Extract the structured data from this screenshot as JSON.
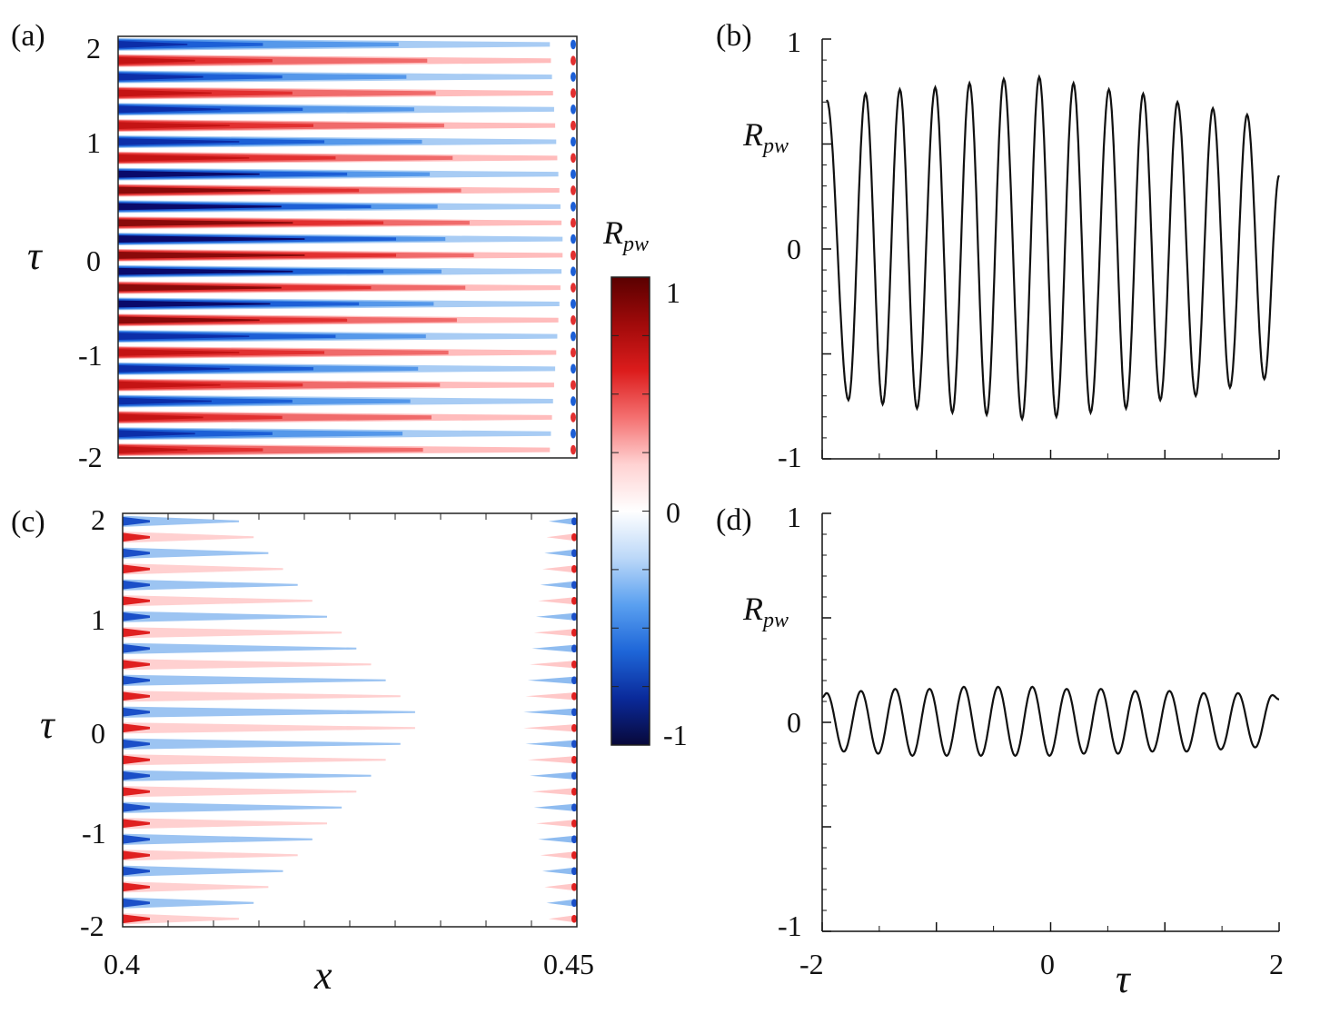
{
  "panels": {
    "a": {
      "label": "(a)"
    },
    "b": {
      "label": "(b)"
    },
    "c": {
      "label": "(c)"
    },
    "d": {
      "label": "(d)"
    }
  },
  "symbols": {
    "tau": "τ",
    "x": "x",
    "R": "R",
    "pw": "pw"
  },
  "colorbar": {
    "title_main": "R",
    "title_sub": "pw",
    "tick_labels": [
      "1",
      "0",
      "-1"
    ],
    "range": [
      -1,
      1
    ],
    "colors": [
      "#08083a",
      "#0a2a9a",
      "#1e66d8",
      "#5aa0f0",
      "#bcd8f8",
      "#ffffff",
      "#ffd2d2",
      "#f47070",
      "#dc1c1c",
      "#a00a0a",
      "#5a0000"
    ]
  },
  "chart_data": [
    {
      "panel": "(a)",
      "type": "heatmap",
      "xlabel": "",
      "ylabel": "τ",
      "xlim": [
        0.4,
        0.45
      ],
      "ylim": [
        -2,
        2
      ],
      "ytick_labels": [
        "2",
        "1",
        "0",
        "-1",
        "-2"
      ],
      "band_count": 26,
      "colorscale_range": [
        -1,
        1
      ]
    },
    {
      "panel": "(b)",
      "type": "line",
      "ylabel": "R_pw",
      "xlim": [
        -2,
        2
      ],
      "ylim": [
        -1,
        1
      ],
      "ytick_labels": [
        "1",
        "0",
        "-1"
      ],
      "series": [
        {
          "x": [
            -1.96,
            -1.77,
            -1.62,
            -1.47,
            -1.32,
            -1.17,
            -1.01,
            -0.86,
            -0.71,
            -0.56,
            -0.41,
            -0.25,
            -0.1,
            0.05,
            0.2,
            0.35,
            0.51,
            0.66,
            0.81,
            0.96,
            1.11,
            1.27,
            1.42,
            1.57,
            1.72,
            1.87,
            2.0
          ],
          "y": [
            0.71,
            -0.72,
            0.74,
            -0.74,
            0.76,
            -0.76,
            0.77,
            -0.78,
            0.79,
            -0.79,
            0.81,
            -0.81,
            0.82,
            -0.8,
            0.79,
            -0.78,
            0.76,
            -0.76,
            0.74,
            -0.72,
            0.7,
            -0.7,
            0.67,
            -0.66,
            0.64,
            -0.62,
            0.35
          ]
        }
      ]
    },
    {
      "panel": "(c)",
      "type": "heatmap",
      "xlabel": "x",
      "ylabel": "τ",
      "xlim": [
        0.4,
        0.45
      ],
      "ylim": [
        -2,
        2
      ],
      "xtick_labels": [
        "0.4",
        "0.45"
      ],
      "ytick_labels": [
        "2",
        "1",
        "0",
        "-1",
        "-2"
      ],
      "band_count": 26,
      "colorscale_range": [
        -1,
        1
      ]
    },
    {
      "panel": "(d)",
      "type": "line",
      "xlabel": "τ",
      "ylabel": "R_pw",
      "xlim": [
        -2,
        2
      ],
      "ylim": [
        -1,
        1
      ],
      "xtick_labels": [
        "-2",
        "0",
        "2"
      ],
      "ytick_labels": [
        "1",
        "0",
        "-1"
      ],
      "series": [
        {
          "x": [
            -2.0,
            -1.96,
            -1.81,
            -1.66,
            -1.51,
            -1.36,
            -1.21,
            -1.06,
            -0.91,
            -0.76,
            -0.61,
            -0.46,
            -0.31,
            -0.16,
            -0.01,
            0.14,
            0.29,
            0.44,
            0.59,
            0.74,
            0.89,
            1.04,
            1.19,
            1.34,
            1.49,
            1.64,
            1.79,
            1.94,
            2.0
          ],
          "y": [
            0.12,
            0.14,
            -0.14,
            0.15,
            -0.15,
            0.16,
            -0.16,
            0.16,
            -0.16,
            0.17,
            -0.16,
            0.17,
            -0.16,
            0.17,
            -0.16,
            0.16,
            -0.15,
            0.16,
            -0.15,
            0.15,
            -0.14,
            0.15,
            -0.14,
            0.14,
            -0.13,
            0.14,
            -0.12,
            0.13,
            0.11
          ]
        }
      ]
    }
  ]
}
